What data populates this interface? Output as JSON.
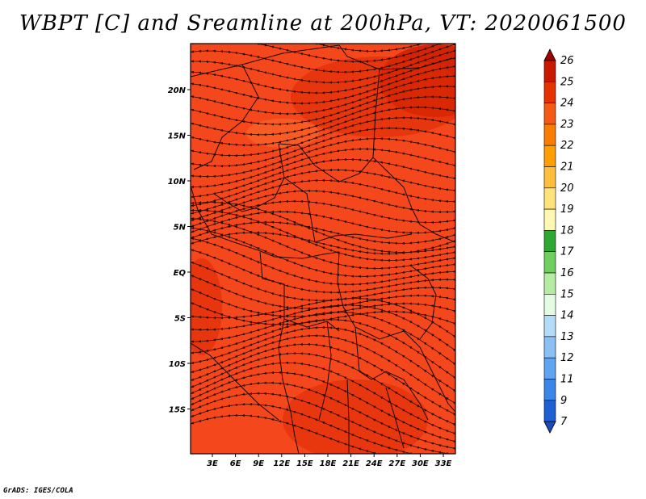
{
  "title": "WBPT [C] and Sreamline at 200hPa, VT: 2020061500",
  "credit": "GrADS: IGES/COLA",
  "map": {
    "lon_labels": [
      "3E",
      "6E",
      "9E",
      "12E",
      "15E",
      "18E",
      "21E",
      "24E",
      "27E",
      "30E",
      "33E"
    ],
    "lat_labels": [
      "20N",
      "15N",
      "10N",
      "5N",
      "EQ",
      "5S",
      "10S",
      "15S"
    ],
    "fill_color": "#f5471c",
    "streamline_color": "#2a0a00"
  },
  "colorbar": {
    "labels": [
      "26",
      "25",
      "24",
      "23",
      "22",
      "21",
      "20",
      "19",
      "18",
      "17",
      "16",
      "15",
      "14",
      "13",
      "12",
      "11",
      "9",
      "7"
    ],
    "colors": [
      "#a00000",
      "#c81800",
      "#e63200",
      "#f55a14",
      "#fa7d00",
      "#ff9e00",
      "#ffbf3c",
      "#ffe37a",
      "#fff7b4",
      "#2ea832",
      "#6fd05f",
      "#b4eca2",
      "#e2fbe2",
      "#b4dcf8",
      "#8ac1f5",
      "#5ea4f0",
      "#3a85e8",
      "#1e60d4",
      "#1a48c0"
    ]
  }
}
